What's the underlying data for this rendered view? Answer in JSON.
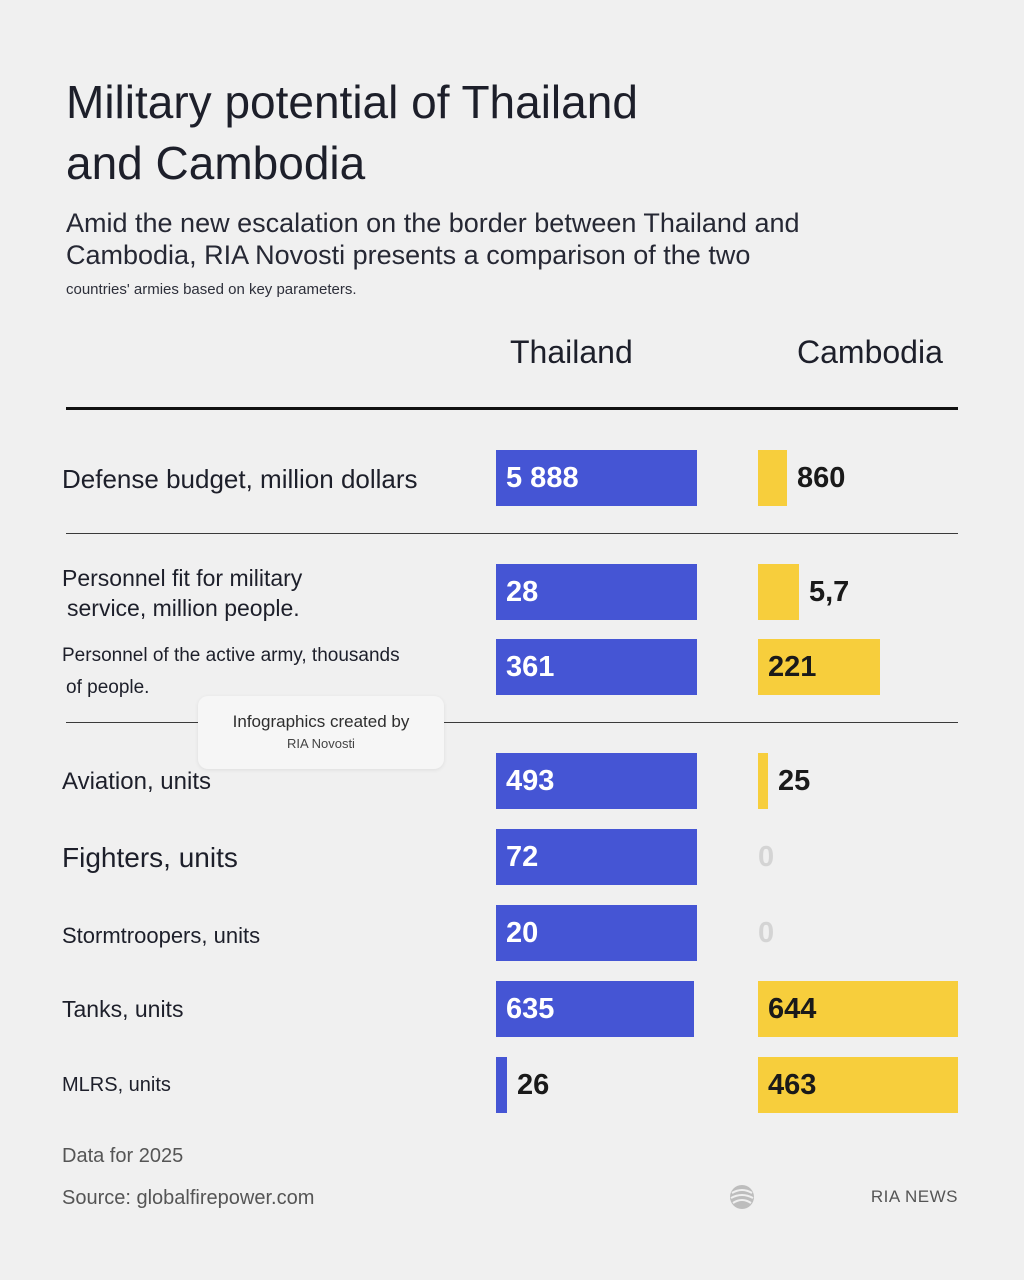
{
  "title_lines": [
    "Military potential of Thailand",
    "and Cambodia"
  ],
  "subtitle": "Amid the new escalation on the border between Thailand and Cambodia, RIA Novosti presents a comparison of the two",
  "subtitle_small": "countries' armies based on key parameters.",
  "columns": {
    "thailand": "Thailand",
    "cambodia": "Cambodia"
  },
  "colors": {
    "thailand": "#4555d4",
    "cambodia": "#f7ce3c"
  },
  "tooltip": {
    "line1": "Infographics created by",
    "line2": "RIA Novosti"
  },
  "footer": {
    "date": "Data for 2025",
    "source": "Source: globalfirepower.com",
    "brand": "RIA NEWS"
  },
  "chart_data": {
    "type": "bar",
    "title": "Military potential of Thailand and Cambodia",
    "series": [
      {
        "name": "Thailand",
        "values": [
          5888,
          28,
          361,
          493,
          72,
          20,
          635,
          26
        ]
      },
      {
        "name": "Cambodia",
        "values": [
          860,
          5.7,
          221,
          25,
          0,
          0,
          644,
          463
        ]
      }
    ],
    "categories": [
      {
        "label_lines": [
          "Defense budget, million dollars"
        ],
        "thailand": 5888,
        "cambodia": 860,
        "thailand_label": "5 888",
        "cambodia_label": "860"
      },
      {
        "label_lines": [
          "Personnel fit for military",
          "service, million people."
        ],
        "thailand": 28,
        "cambodia": 5.7,
        "thailand_label": "28",
        "cambodia_label": "5,7"
      },
      {
        "label_lines": [
          "Personnel of the active army, thousands",
          "of people."
        ],
        "thailand": 361,
        "cambodia": 221,
        "thailand_label": "361",
        "cambodia_label": "221"
      },
      {
        "label_lines": [
          "Aviation, units"
        ],
        "thailand": 493,
        "cambodia": 25,
        "thailand_label": "493",
        "cambodia_label": "25"
      },
      {
        "label_lines": [
          "Fighters, units"
        ],
        "thailand": 72,
        "cambodia": 0,
        "thailand_label": "72",
        "cambodia_label": "0"
      },
      {
        "label_lines": [
          "Stormtroopers, units"
        ],
        "thailand": 20,
        "cambodia": 0,
        "thailand_label": "20",
        "cambodia_label": "0"
      },
      {
        "label_lines": [
          "Tanks, units"
        ],
        "thailand": 635,
        "cambodia": 644,
        "thailand_label": "635",
        "cambodia_label": "644"
      },
      {
        "label_lines": [
          "MLRS, units"
        ],
        "thailand": 26,
        "cambodia": 463,
        "thailand_label": "26",
        "cambodia_label": "463"
      }
    ]
  }
}
